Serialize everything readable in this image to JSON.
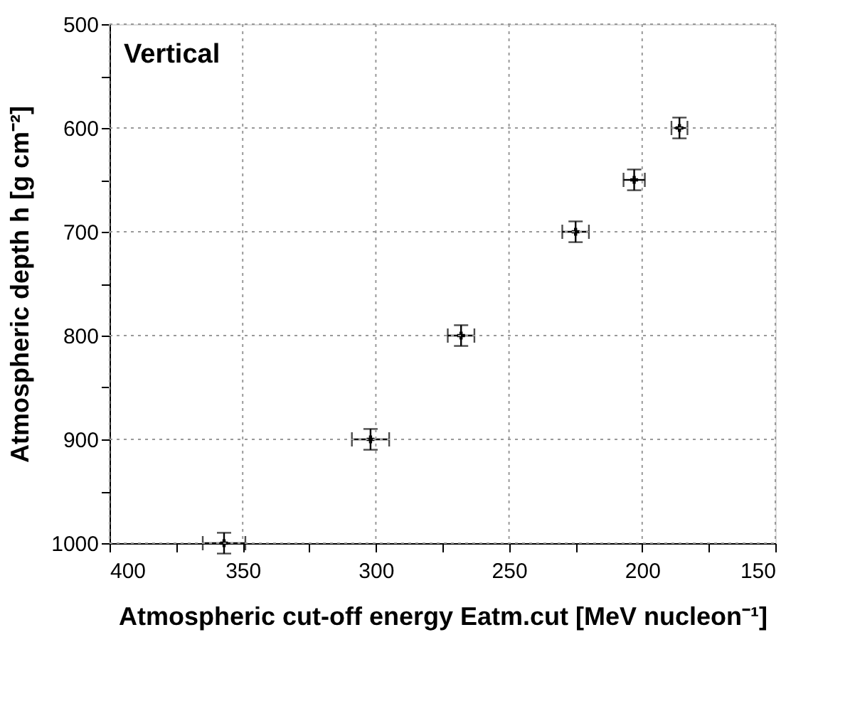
{
  "chart_data": {
    "type": "scatter",
    "xlabel": "Atmospheric cut-off energy Eatm.cut [MeV nucleon⁻¹]",
    "ylabel": "Atmospheric depth h [g cm⁻²]",
    "annotations": [
      "Vertical"
    ],
    "x": [
      357,
      302,
      268,
      225,
      203,
      186
    ],
    "values": [
      1000,
      900,
      800,
      700,
      650,
      600
    ],
    "xerrors": [
      8,
      7,
      5,
      5,
      4,
      3
    ],
    "errors": [
      10,
      10,
      10,
      10,
      10,
      10
    ],
    "color": "#000000",
    "marker": "cross",
    "xlim": [
      400,
      150
    ],
    "ylim": [
      1000,
      500
    ],
    "xticks": [
      400,
      {
        "value": 375,
        "label": null
      },
      350,
      {
        "value": 325,
        "label": null
      },
      300,
      {
        "value": 275,
        "label": null
      },
      250,
      {
        "value": 225,
        "label": null
      },
      200,
      {
        "value": 175,
        "label": null
      },
      150
    ],
    "yticks": [
      500,
      {
        "value": 550,
        "label": null
      },
      600,
      {
        "value": 650,
        "label": null
      },
      700,
      {
        "value": 750,
        "label": null
      },
      800,
      {
        "value": 850,
        "label": null
      },
      900,
      {
        "value": 950,
        "label": null
      },
      1000
    ],
    "grid": true
  }
}
